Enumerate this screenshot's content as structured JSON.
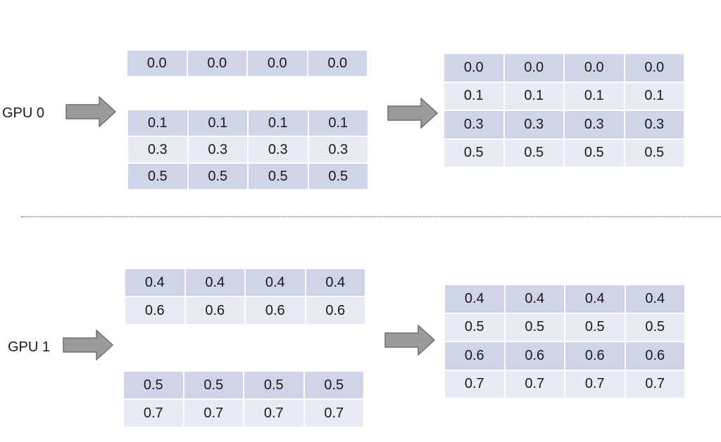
{
  "gpu0": {
    "label": "GPU 0",
    "input_top": [
      [
        "0.0",
        "0.0",
        "0.0",
        "0.0"
      ]
    ],
    "input_bottom": [
      [
        "0.1",
        "0.1",
        "0.1",
        "0.1"
      ],
      [
        "0.3",
        "0.3",
        "0.3",
        "0.3"
      ],
      [
        "0.5",
        "0.5",
        "0.5",
        "0.5"
      ]
    ],
    "output": [
      [
        "0.0",
        "0.0",
        "0.0",
        "0.0"
      ],
      [
        "0.1",
        "0.1",
        "0.1",
        "0.1"
      ],
      [
        "0.3",
        "0.3",
        "0.3",
        "0.3"
      ],
      [
        "0.5",
        "0.5",
        "0.5",
        "0.5"
      ]
    ]
  },
  "gpu1": {
    "label": "GPU 1",
    "input_top": [
      [
        "0.4",
        "0.4",
        "0.4",
        "0.4"
      ],
      [
        "0.6",
        "0.6",
        "0.6",
        "0.6"
      ]
    ],
    "input_bottom": [
      [
        "0.5",
        "0.5",
        "0.5",
        "0.5"
      ],
      [
        "0.7",
        "0.7",
        "0.7",
        "0.7"
      ]
    ],
    "output": [
      [
        "0.4",
        "0.4",
        "0.4",
        "0.4"
      ],
      [
        "0.5",
        "0.5",
        "0.5",
        "0.5"
      ],
      [
        "0.6",
        "0.6",
        "0.6",
        "0.6"
      ],
      [
        "0.7",
        "0.7",
        "0.7",
        "0.7"
      ]
    ]
  },
  "colors": {
    "row_dark": "#cfd4e9",
    "row_light": "#e8eaf4",
    "arrow_fill": "#9b9b9b",
    "arrow_stroke": "#6e6e6e"
  }
}
